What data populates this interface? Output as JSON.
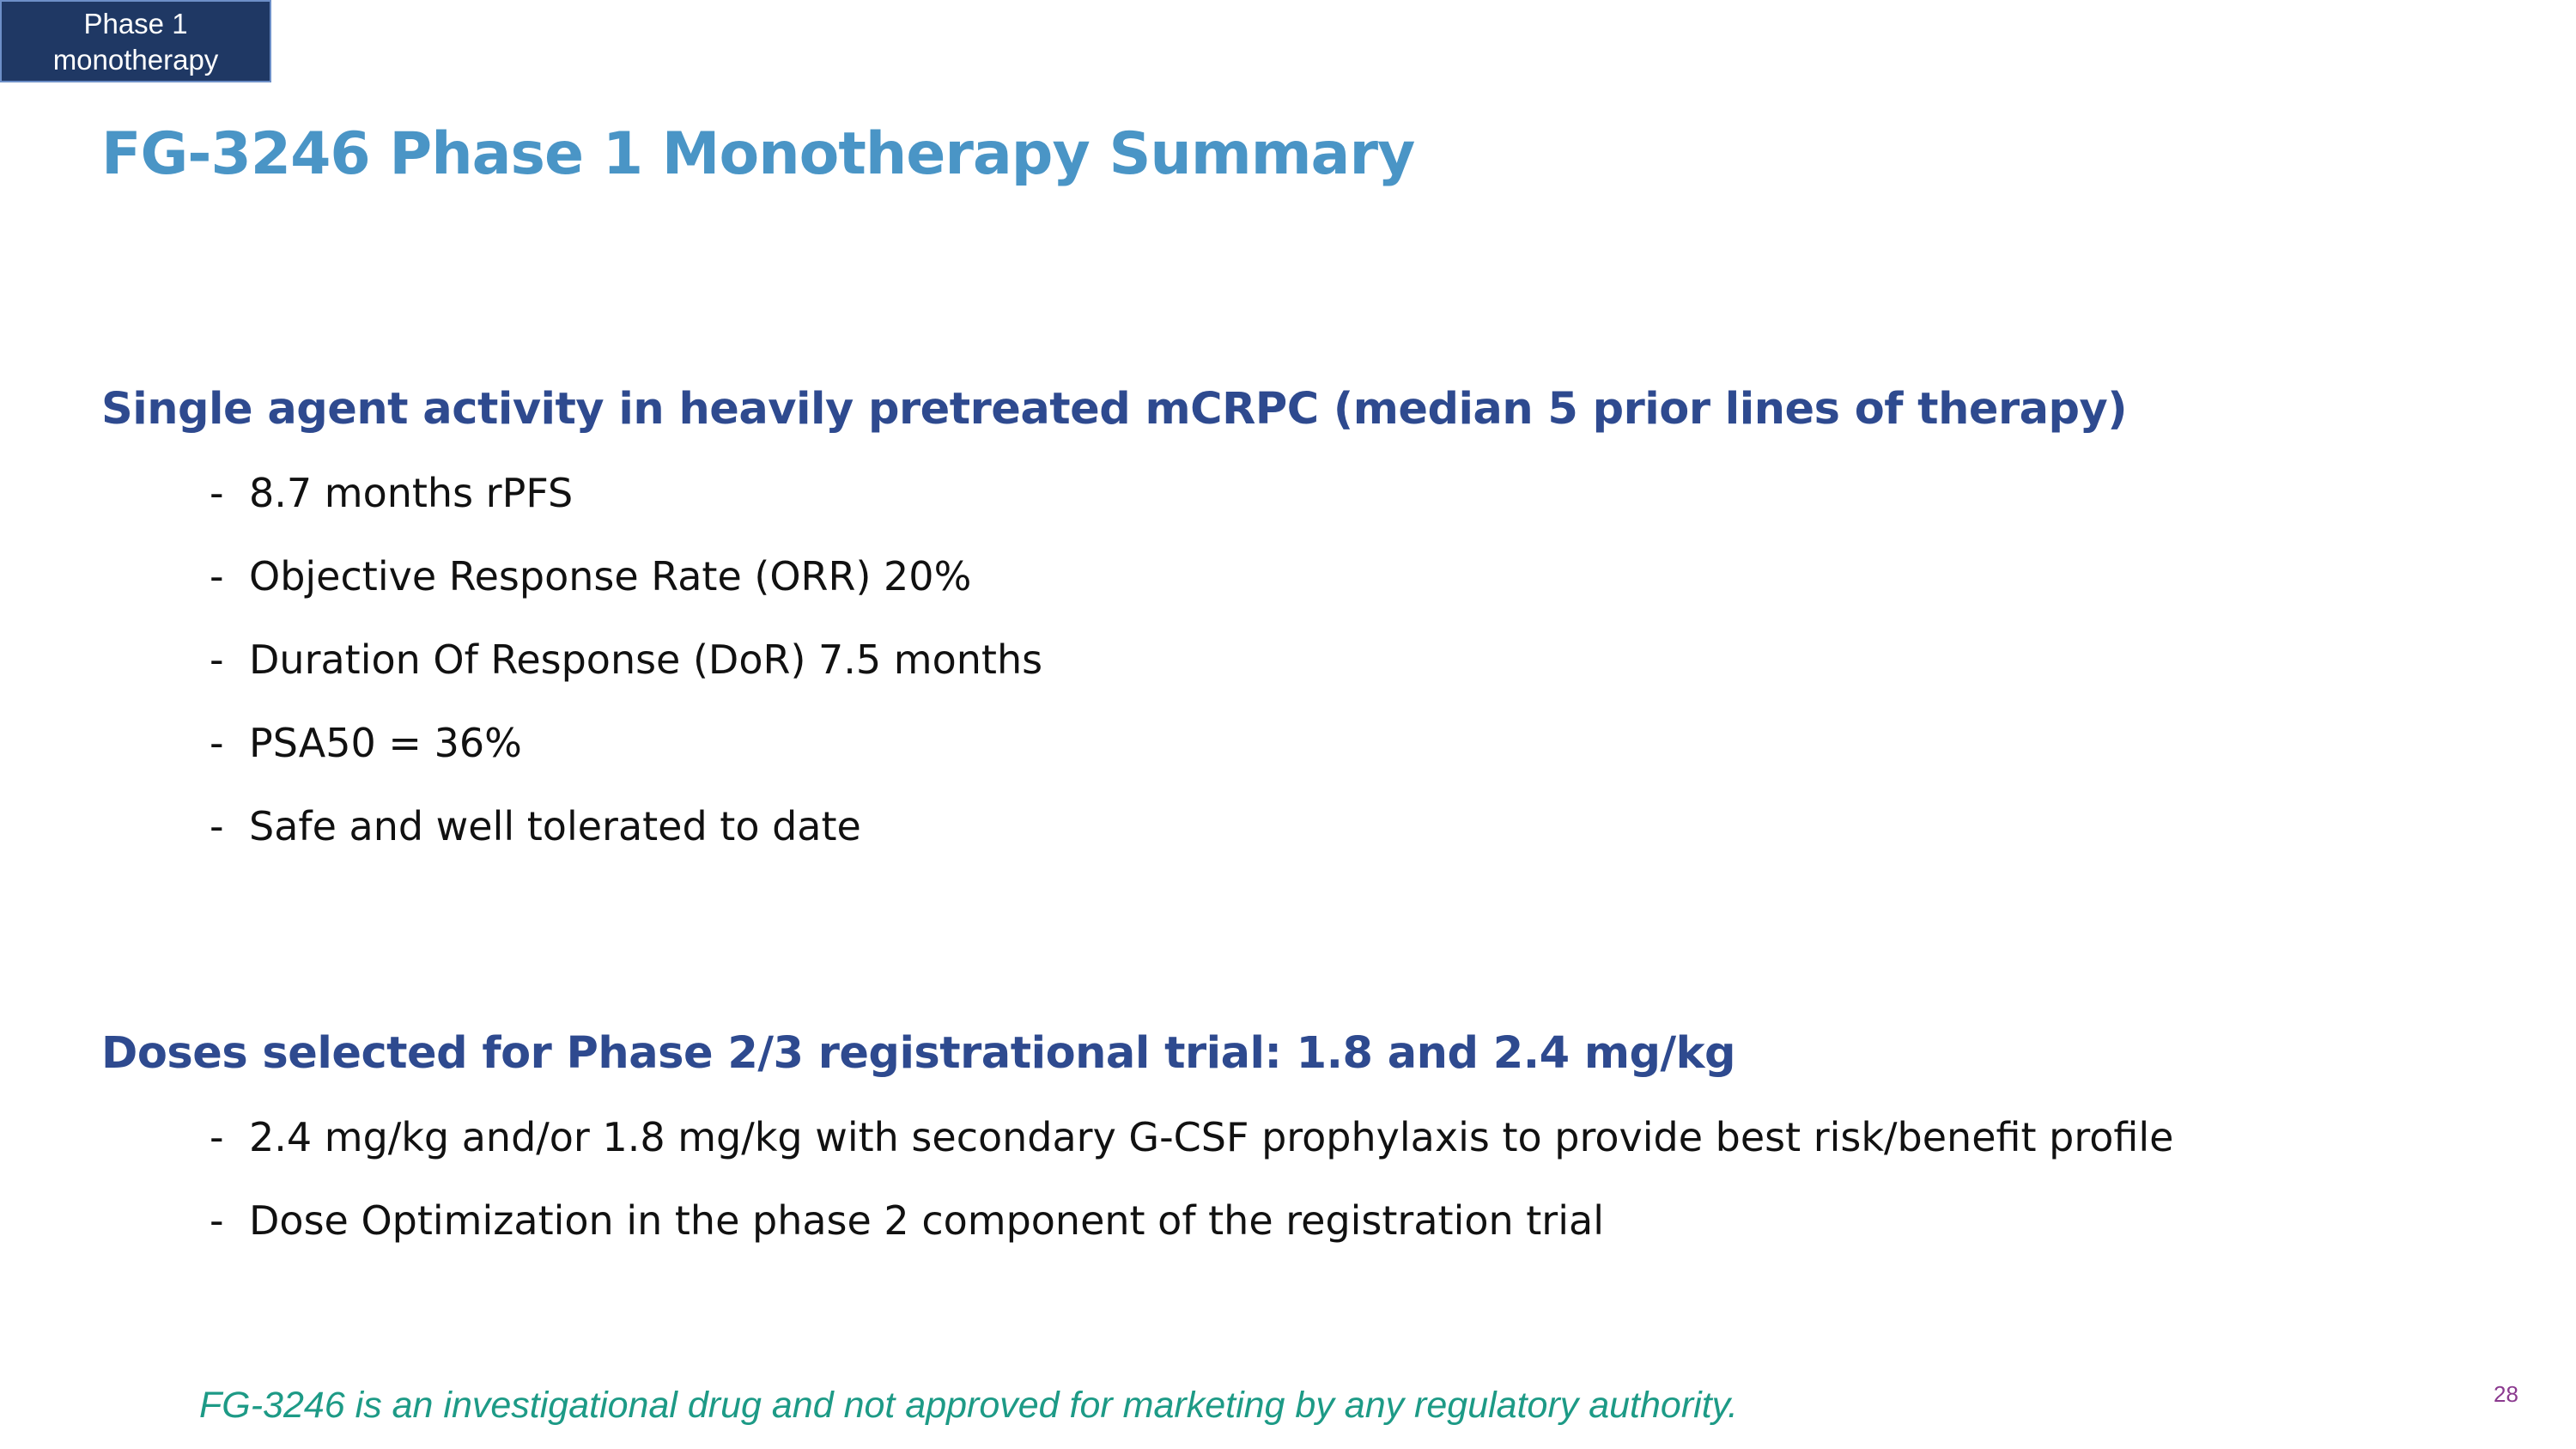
{
  "tag": {
    "line1": "Phase 1",
    "line2": "monotherapy"
  },
  "title": "FG-3246 Phase 1 Monotherapy Summary",
  "section1": {
    "heading": "Single agent activity in heavily pretreated mCRPC (median 5 prior lines of therapy)",
    "bullets": [
      "8.7 months rPFS",
      "Objective Response Rate (ORR) 20%",
      "Duration Of Response (DoR) 7.5 months",
      "PSA50 = 36%",
      "Safe and well tolerated to date"
    ]
  },
  "section2": {
    "heading": "Doses selected for Phase 2/3 registrational trial: 1.8 and 2.4 mg/kg",
    "bullets": [
      "2.4 mg/kg and/or 1.8 mg/kg with secondary G-CSF prophylaxis to provide best risk/benefit profile",
      "Dose Optimization in the phase 2 component of the registration trial"
    ]
  },
  "bullet_marker": "-",
  "footer": "FG-3246 is an investigational drug and not approved for marketing by any regulatory authority.",
  "page_number": "28",
  "colors": {
    "tag_bg": "#1f3864",
    "title": "#4a95c6",
    "heading": "#2e4a8f",
    "footer": "#1d9a86",
    "page_number": "#8b3a8f"
  }
}
